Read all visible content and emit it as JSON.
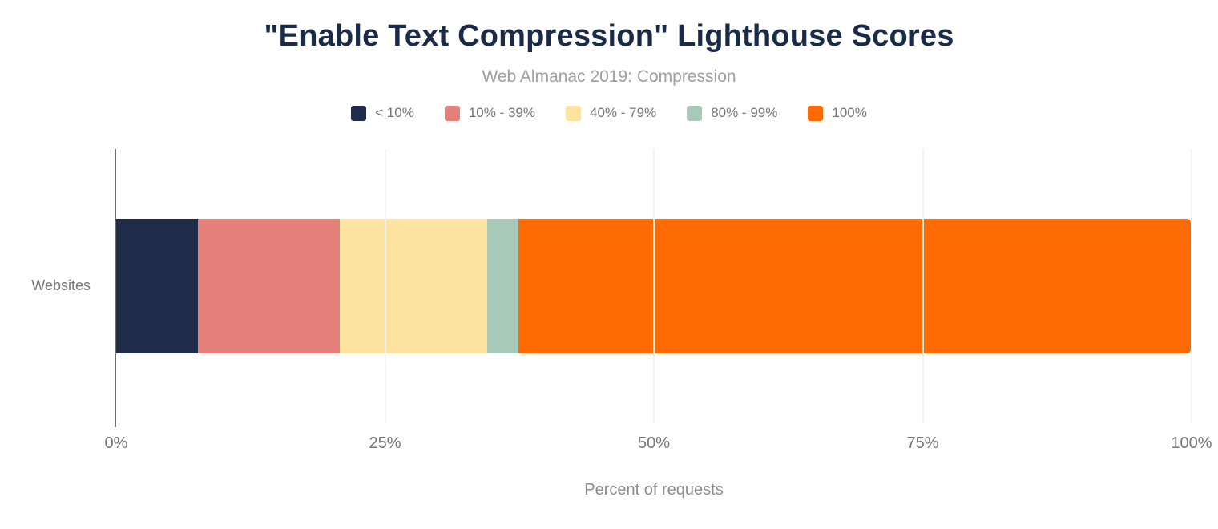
{
  "header": {
    "title": "\"Enable Text Compression\" Lighthouse Scores",
    "subtitle": "Web Almanac 2019: Compression"
  },
  "chart_data": {
    "type": "bar",
    "stacked": true,
    "orientation": "horizontal",
    "title": "\"Enable Text Compression\" Lighthouse Scores",
    "subtitle": "Web Almanac 2019: Compression",
    "categories": [
      "Websites"
    ],
    "series": [
      {
        "name": "< 10%",
        "values": [
          7.6
        ],
        "color": "#1e2b49"
      },
      {
        "name": "10% - 39%",
        "values": [
          13.2
        ],
        "color": "#e5807a"
      },
      {
        "name": "40% - 79%",
        "values": [
          13.7
        ],
        "color": "#fde3a0"
      },
      {
        "name": "80% - 99%",
        "values": [
          2.9
        ],
        "color": "#a9c9b8"
      },
      {
        "name": "100%",
        "values": [
          62.5
        ],
        "color": "#fd6b02"
      }
    ],
    "xlabel": "Percent of requests",
    "ylabel": "",
    "xlim": [
      0,
      100
    ],
    "x_ticks": [
      {
        "value": 0,
        "label": "0%"
      },
      {
        "value": 25,
        "label": "25%"
      },
      {
        "value": 50,
        "label": "50%"
      },
      {
        "value": 75,
        "label": "75%"
      },
      {
        "value": 100,
        "label": "100%"
      }
    ],
    "grid": true,
    "legend_position": "top"
  },
  "style": {
    "title_color": "#1a2b49",
    "subtitle_color": "#9e9e9e",
    "label_color": "#757575",
    "axis_line_color": "#6b6b6b",
    "gridline_color": "#f2f2f2",
    "background": "#ffffff"
  }
}
